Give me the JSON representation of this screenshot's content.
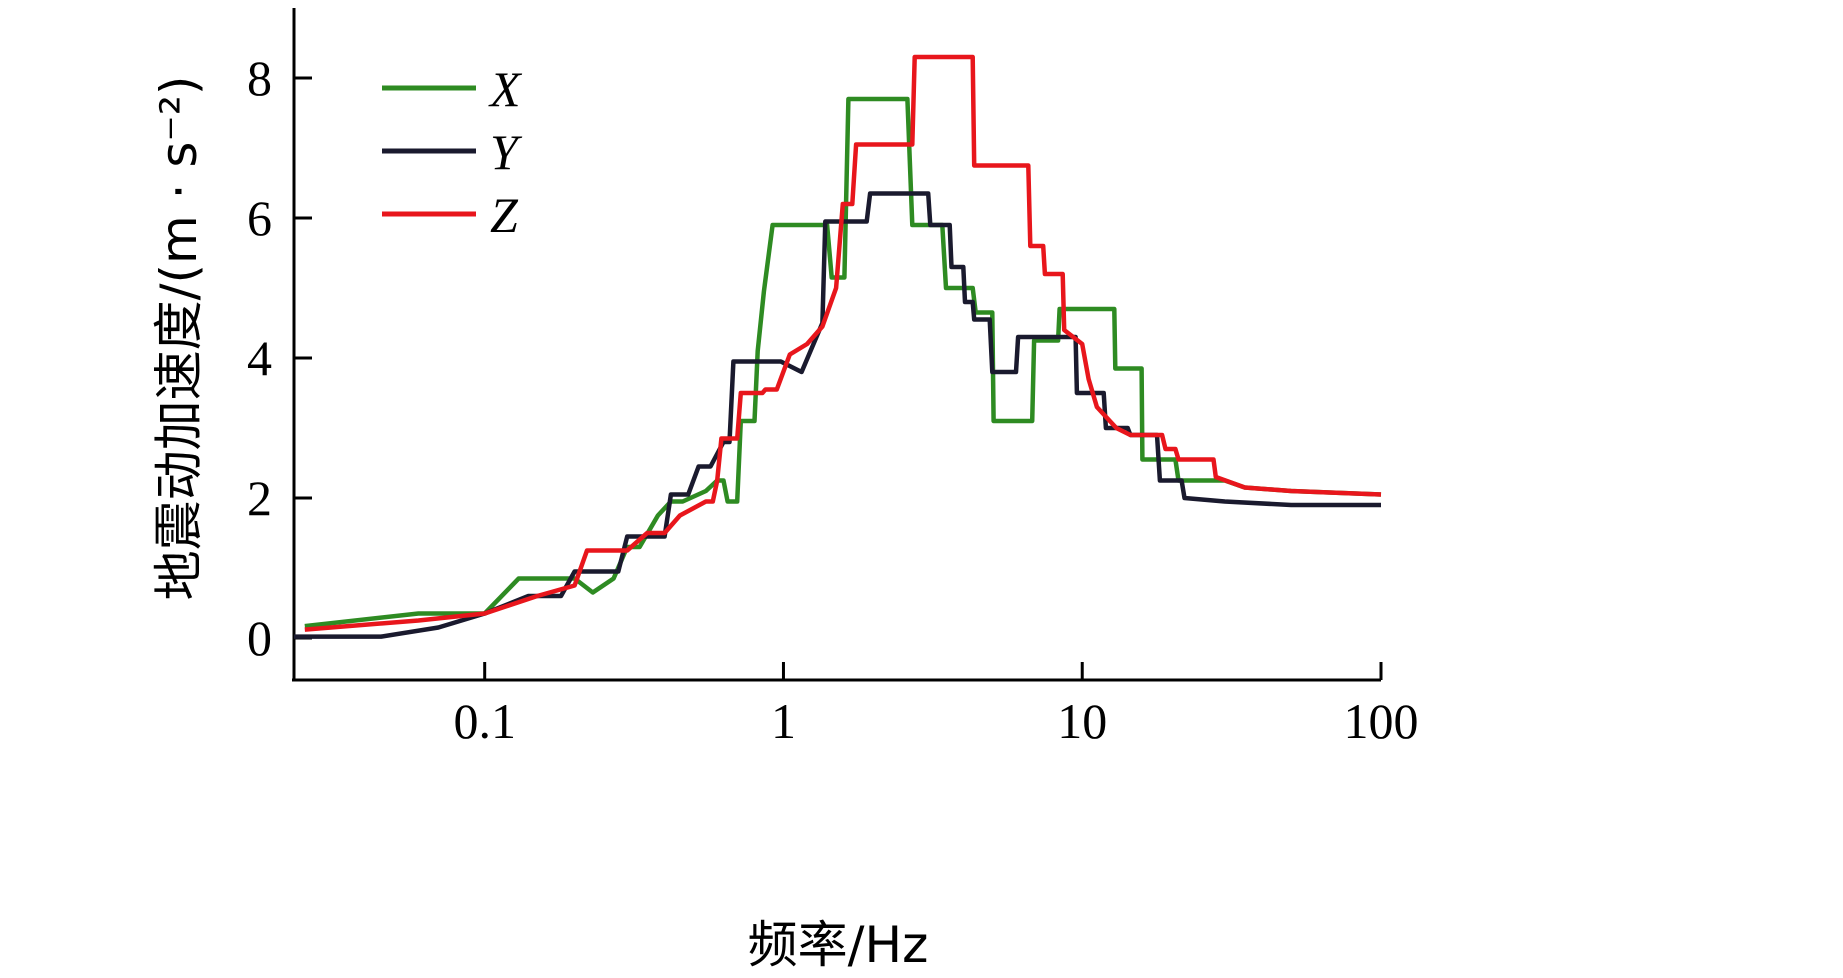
{
  "chart_data": {
    "type": "line",
    "xscale": "log",
    "xlim": [
      0.023,
      100
    ],
    "ylim": [
      -0.6,
      9
    ],
    "xticks": [
      0.1,
      1,
      10,
      100
    ],
    "xtick_labels": [
      "0.1",
      "1",
      "10",
      "100"
    ],
    "yticks": [
      0,
      2,
      4,
      6,
      8
    ],
    "ytick_labels": [
      "0",
      "2",
      "4",
      "6",
      "8"
    ],
    "xlabel": "频率/Hz",
    "ylabel": "地震动加速度/(m · s⁻²)",
    "grid": false,
    "legend_position": "top-left",
    "series": [
      {
        "name": "X",
        "color": "#2e8b22",
        "points": [
          [
            0.025,
            0.17
          ],
          [
            0.06,
            0.35
          ],
          [
            0.1,
            0.35
          ],
          [
            0.13,
            0.85
          ],
          [
            0.2,
            0.85
          ],
          [
            0.23,
            0.65
          ],
          [
            0.27,
            0.85
          ],
          [
            0.3,
            1.3
          ],
          [
            0.33,
            1.3
          ],
          [
            0.38,
            1.75
          ],
          [
            0.42,
            1.95
          ],
          [
            0.46,
            1.95
          ],
          [
            0.55,
            2.1
          ],
          [
            0.6,
            2.25
          ],
          [
            0.63,
            2.25
          ],
          [
            0.65,
            1.95
          ],
          [
            0.7,
            1.95
          ],
          [
            0.72,
            3.1
          ],
          [
            0.8,
            3.1
          ],
          [
            0.82,
            4.1
          ],
          [
            0.86,
            4.95
          ],
          [
            0.92,
            5.9
          ],
          [
            1.4,
            5.9
          ],
          [
            1.45,
            5.15
          ],
          [
            1.6,
            5.15
          ],
          [
            1.65,
            7.7
          ],
          [
            2.6,
            7.7
          ],
          [
            2.7,
            5.9
          ],
          [
            3.4,
            5.9
          ],
          [
            3.5,
            5.0
          ],
          [
            4.3,
            5.0
          ],
          [
            4.4,
            4.65
          ],
          [
            5.0,
            4.65
          ],
          [
            5.05,
            3.1
          ],
          [
            6.8,
            3.1
          ],
          [
            6.9,
            4.25
          ],
          [
            8.3,
            4.25
          ],
          [
            8.4,
            4.7
          ],
          [
            12.8,
            4.7
          ],
          [
            12.9,
            3.85
          ],
          [
            15.8,
            3.85
          ],
          [
            15.9,
            2.55
          ],
          [
            20.5,
            2.55
          ],
          [
            21,
            2.25
          ],
          [
            30,
            2.25
          ],
          [
            35,
            2.15
          ],
          [
            50,
            2.1
          ],
          [
            100,
            2.05
          ]
        ]
      },
      {
        "name": "Y",
        "color": "#1a1a2e",
        "points": [
          [
            0.023,
            0.02
          ],
          [
            0.045,
            0.02
          ],
          [
            0.07,
            0.15
          ],
          [
            0.1,
            0.35
          ],
          [
            0.14,
            0.6
          ],
          [
            0.18,
            0.6
          ],
          [
            0.2,
            0.95
          ],
          [
            0.28,
            0.95
          ],
          [
            0.3,
            1.45
          ],
          [
            0.33,
            1.45
          ],
          [
            0.35,
            1.45
          ],
          [
            0.4,
            1.45
          ],
          [
            0.42,
            2.05
          ],
          [
            0.48,
            2.05
          ],
          [
            0.52,
            2.45
          ],
          [
            0.57,
            2.45
          ],
          [
            0.63,
            2.8
          ],
          [
            0.66,
            2.8
          ],
          [
            0.68,
            3.95
          ],
          [
            0.98,
            3.95
          ],
          [
            1.15,
            3.8
          ],
          [
            1.35,
            4.5
          ],
          [
            1.38,
            5.95
          ],
          [
            1.6,
            5.95
          ],
          [
            1.65,
            5.95
          ],
          [
            1.9,
            5.95
          ],
          [
            1.95,
            6.35
          ],
          [
            3.05,
            6.35
          ],
          [
            3.1,
            5.9
          ],
          [
            3.6,
            5.9
          ],
          [
            3.65,
            5.3
          ],
          [
            4.0,
            5.3
          ],
          [
            4.05,
            4.8
          ],
          [
            4.3,
            4.8
          ],
          [
            4.35,
            4.55
          ],
          [
            4.9,
            4.55
          ],
          [
            5.0,
            3.8
          ],
          [
            6.0,
            3.8
          ],
          [
            6.1,
            4.3
          ],
          [
            9.5,
            4.3
          ],
          [
            9.6,
            3.5
          ],
          [
            11.8,
            3.5
          ],
          [
            12.0,
            3.0
          ],
          [
            14.2,
            3.0
          ],
          [
            14.5,
            2.9
          ],
          [
            17.8,
            2.9
          ],
          [
            18.2,
            2.25
          ],
          [
            21.5,
            2.25
          ],
          [
            22,
            2.0
          ],
          [
            30,
            1.95
          ],
          [
            50,
            1.9
          ],
          [
            100,
            1.9
          ]
        ]
      },
      {
        "name": "Z",
        "color": "#e8161c",
        "points": [
          [
            0.025,
            0.12
          ],
          [
            0.06,
            0.25
          ],
          [
            0.1,
            0.35
          ],
          [
            0.15,
            0.6
          ],
          [
            0.2,
            0.75
          ],
          [
            0.22,
            1.25
          ],
          [
            0.3,
            1.25
          ],
          [
            0.35,
            1.5
          ],
          [
            0.38,
            1.5
          ],
          [
            0.4,
            1.5
          ],
          [
            0.45,
            1.75
          ],
          [
            0.55,
            1.95
          ],
          [
            0.58,
            1.95
          ],
          [
            0.6,
            2.25
          ],
          [
            0.62,
            2.85
          ],
          [
            0.7,
            2.85
          ],
          [
            0.72,
            3.5
          ],
          [
            0.85,
            3.5
          ],
          [
            0.87,
            3.55
          ],
          [
            0.95,
            3.55
          ],
          [
            1.05,
            4.05
          ],
          [
            1.2,
            4.2
          ],
          [
            1.35,
            4.45
          ],
          [
            1.5,
            5.0
          ],
          [
            1.58,
            6.2
          ],
          [
            1.7,
            6.2
          ],
          [
            1.75,
            7.05
          ],
          [
            2.7,
            7.05
          ],
          [
            2.75,
            8.3
          ],
          [
            4.3,
            8.3
          ],
          [
            4.35,
            6.75
          ],
          [
            6.6,
            6.75
          ],
          [
            6.7,
            5.6
          ],
          [
            7.4,
            5.6
          ],
          [
            7.5,
            5.2
          ],
          [
            8.6,
            5.2
          ],
          [
            8.7,
            4.4
          ],
          [
            10,
            4.2
          ],
          [
            10.5,
            3.7
          ],
          [
            11.2,
            3.3
          ],
          [
            13,
            3.0
          ],
          [
            14.5,
            2.9
          ],
          [
            18.5,
            2.9
          ],
          [
            19,
            2.7
          ],
          [
            20.5,
            2.7
          ],
          [
            21,
            2.55
          ],
          [
            27.5,
            2.55
          ],
          [
            28,
            2.3
          ],
          [
            35,
            2.15
          ],
          [
            50,
            2.1
          ],
          [
            100,
            2.05
          ]
        ]
      }
    ]
  }
}
